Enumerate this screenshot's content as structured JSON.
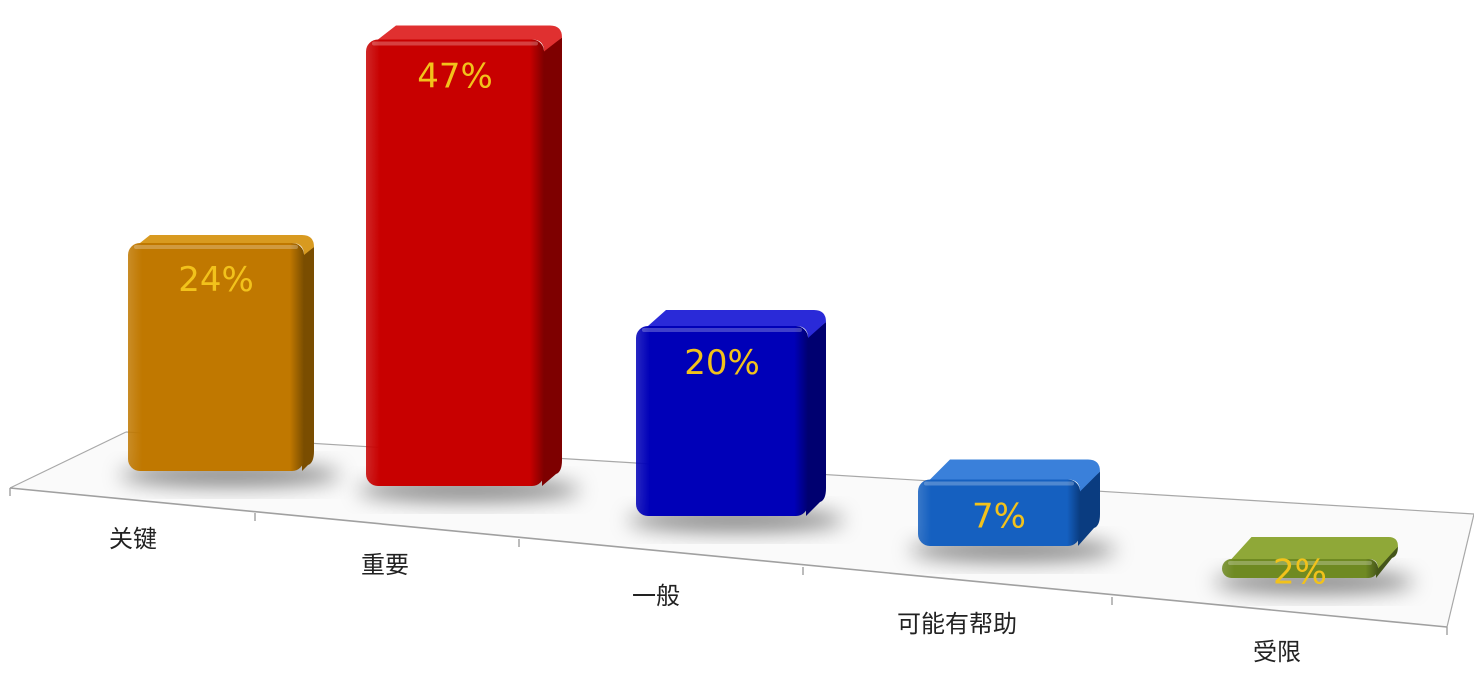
{
  "chart_data": {
    "type": "bar",
    "categories": [
      "关键",
      "重要",
      "一般",
      "可能有帮助",
      "受限"
    ],
    "values": [
      24,
      47,
      20,
      7,
      2
    ],
    "value_labels": [
      "24%",
      "47%",
      "20%",
      "7%",
      "2%"
    ],
    "unit": "%",
    "ylim": [
      0,
      50
    ],
    "grid": false,
    "legend": "none",
    "style": "3d-perspective",
    "colors": [
      "#C07800",
      "#C80000",
      "#0000B8",
      "#1560C0",
      "#6F8A22"
    ],
    "side_colors": [
      "#7A4D00",
      "#7E0000",
      "#000070",
      "#0A3C80",
      "#45561A"
    ],
    "top_colors": [
      "#D89A20",
      "#E03030",
      "#2A2AD8",
      "#3A80DA",
      "#8FA838"
    ],
    "label_color": "#F2C21B"
  }
}
